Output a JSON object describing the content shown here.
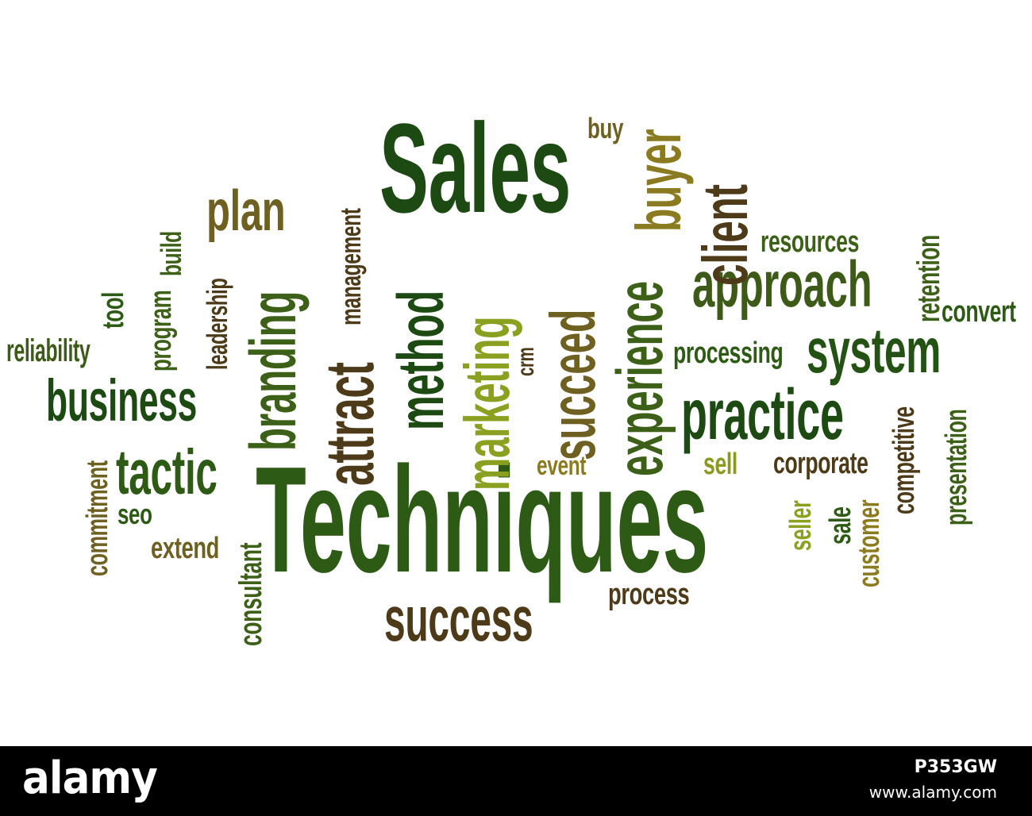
{
  "words": [
    {
      "key": "sales",
      "text": "Sales",
      "color": "#1d4a12"
    },
    {
      "key": "techniques",
      "text": "Techniques",
      "color": "#2d5a14"
    },
    {
      "key": "success",
      "text": "success",
      "color": "#4d3a18"
    },
    {
      "key": "approach",
      "text": "approach",
      "color": "#3d5a18"
    },
    {
      "key": "system",
      "text": "system",
      "color": "#245214"
    },
    {
      "key": "practice",
      "text": "practice",
      "color": "#1d4a12"
    },
    {
      "key": "business",
      "text": "business",
      "color": "#1d4a12"
    },
    {
      "key": "tactic",
      "text": "tactic",
      "color": "#2d5a14"
    },
    {
      "key": "plan",
      "text": "plan",
      "color": "#6d6020"
    },
    {
      "key": "reliability",
      "text": "reliability",
      "color": "#3d5a18"
    },
    {
      "key": "resources",
      "text": "resources",
      "color": "#3d6018"
    },
    {
      "key": "convert",
      "text": "convert",
      "color": "#2d5a14"
    },
    {
      "key": "processing",
      "text": "processing",
      "color": "#2d5a14"
    },
    {
      "key": "corporate",
      "text": "corporate",
      "color": "#4d3a18"
    },
    {
      "key": "event",
      "text": "event",
      "color": "#8a7a20"
    },
    {
      "key": "sell",
      "text": "sell",
      "color": "#8a9a20"
    },
    {
      "key": "process",
      "text": "process",
      "color": "#4d3a18"
    },
    {
      "key": "extend",
      "text": "extend",
      "color": "#6d6020"
    },
    {
      "key": "seo",
      "text": "seo",
      "color": "#2d5a14"
    },
    {
      "key": "buy",
      "text": "buy",
      "color": "#6d6020"
    },
    {
      "key": "branding",
      "text": "branding",
      "color": "#3d6018"
    },
    {
      "key": "attract",
      "text": "attract",
      "color": "#4d3a18"
    },
    {
      "key": "method",
      "text": "method",
      "color": "#1d4a12"
    },
    {
      "key": "marketing",
      "text": "marketing",
      "color": "#8aa020"
    },
    {
      "key": "succeed",
      "text": "succeed",
      "color": "#6d6020"
    },
    {
      "key": "experience",
      "text": "experience",
      "color": "#3d6018"
    },
    {
      "key": "buyer",
      "text": "buyer",
      "color": "#8a7a20"
    },
    {
      "key": "client",
      "text": "client",
      "color": "#4d3a18"
    },
    {
      "key": "management",
      "text": "management",
      "color": "#4d3a18"
    },
    {
      "key": "leadership",
      "text": "leadership",
      "color": "#4d3a18"
    },
    {
      "key": "program",
      "text": "program",
      "color": "#3d6018"
    },
    {
      "key": "build",
      "text": "build",
      "color": "#3d6018"
    },
    {
      "key": "tool",
      "text": "tool",
      "color": "#2d5a14"
    },
    {
      "key": "commitment",
      "text": "commitment",
      "color": "#6d6020"
    },
    {
      "key": "consultant",
      "text": "consultant",
      "color": "#3d6018"
    },
    {
      "key": "crm",
      "text": "crm",
      "color": "#4d3a18"
    },
    {
      "key": "retention",
      "text": "retention",
      "color": "#3d6018"
    },
    {
      "key": "competitive",
      "text": "competitive",
      "color": "#4d3a18"
    },
    {
      "key": "presentation",
      "text": "presentation",
      "color": "#3d6018"
    },
    {
      "key": "seller",
      "text": "seller",
      "color": "#8aa020"
    },
    {
      "key": "sale",
      "text": "sale",
      "color": "#2d5a14"
    },
    {
      "key": "customer",
      "text": "customer",
      "color": "#8a7a20"
    }
  ],
  "footer": {
    "logo_text": "alamy",
    "image_id": "P353GW",
    "site_url": "www.alamy.com"
  }
}
